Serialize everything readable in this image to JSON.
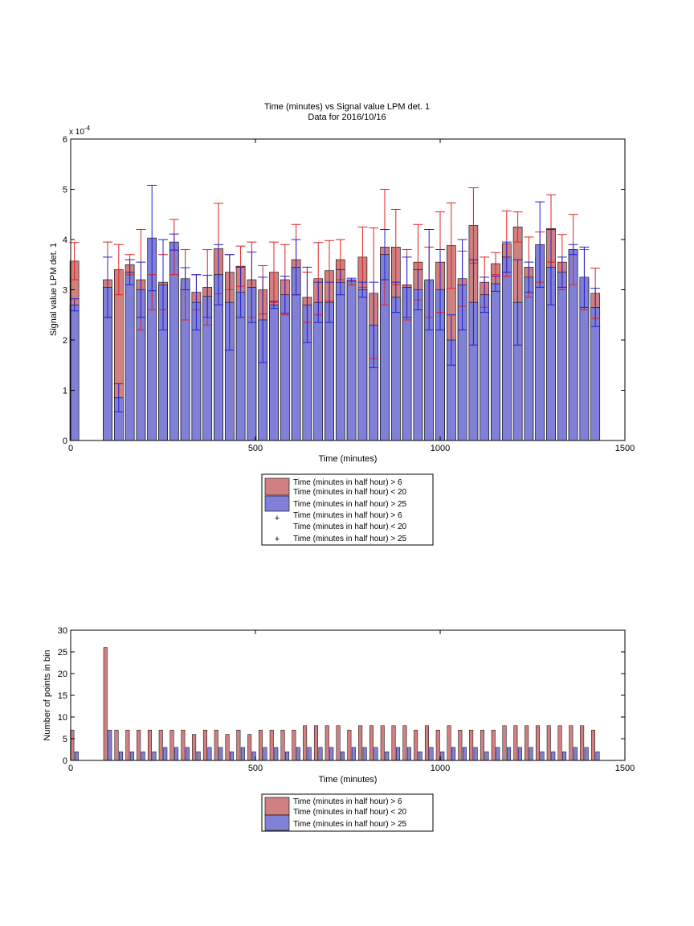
{
  "chart_data": [
    {
      "type": "bar",
      "title": [
        "Time (minutes) vs Signal value LPM det. 1",
        "Data for 2016/10/16"
      ],
      "xlabel": "Time (minutes)",
      "ylabel": "Signal value LPM det. 1",
      "xlim": [
        0,
        1500
      ],
      "ylim": [
        0,
        6
      ],
      "xticks": [
        0,
        500,
        1000,
        1500
      ],
      "yticks": [
        0,
        1,
        2,
        3,
        4,
        5,
        6
      ],
      "y_multiplier_label": "x 10",
      "y_multiplier_exponent": "-4",
      "grid": false,
      "legend_position": "below",
      "legend": [
        "Time (minutes in half hour) > 6\nTime (minutes in half hour) < 20",
        "Time (minutes in half hour) > 25",
        "Time (minutes in half hour) > 6\nTime (minutes in half hour) < 20",
        "Time (minutes in half hour) > 25"
      ],
      "colors": {
        "series1": "#d08080",
        "series2": "#8080d8",
        "err1": "#e02020",
        "err2": "#2020d0"
      },
      "x": [
        10,
        40,
        70,
        100,
        130,
        160,
        190,
        220,
        250,
        280,
        310,
        340,
        370,
        400,
        430,
        460,
        490,
        520,
        550,
        580,
        610,
        640,
        670,
        700,
        730,
        760,
        790,
        820,
        850,
        880,
        910,
        940,
        970,
        1000,
        1030,
        1060,
        1090,
        1120,
        1150,
        1180,
        1210,
        1240,
        1270,
        1300,
        1330,
        1360,
        1390,
        1420
      ],
      "series": [
        {
          "name": "Time (minutes in half hour) > 6 Time (minutes in half hour) < 20",
          "values": [
            3.57,
            null,
            null,
            3.2,
            3.4,
            3.5,
            3.2,
            2.95,
            3.15,
            3.85,
            3.1,
            2.95,
            3.05,
            3.82,
            3.35,
            3.47,
            3.2,
            3.0,
            3.35,
            3.2,
            3.6,
            2.85,
            3.22,
            3.38,
            3.6,
            3.15,
            3.65,
            2.93,
            3.85,
            3.85,
            3.1,
            3.55,
            3.15,
            3.55,
            3.88,
            3.22,
            4.28,
            3.15,
            3.52,
            3.92,
            4.25,
            3.45,
            3.65,
            4.22,
            3.55,
            3.8,
            3.2,
            2.93
          ],
          "err": [
            0.37,
            null,
            null,
            0.75,
            0.5,
            0.2,
            1.0,
            0.35,
            0.55,
            0.55,
            0.7,
            0.35,
            0.75,
            0.9,
            0.35,
            0.4,
            0.75,
            0.48,
            0.6,
            0.7,
            0.7,
            0.5,
            0.72,
            0.6,
            0.4,
            0.05,
            0.6,
            1.3,
            1.15,
            0.75,
            0.7,
            0.75,
            0.7,
            1.0,
            0.85,
            0.55,
            0.75,
            0.5,
            0.22,
            0.65,
            0.3,
            0.6,
            0.5,
            0.67,
            0.55,
            0.7,
            0.6,
            0.5
          ]
        },
        {
          "name": "Time (minutes in half hour) > 25",
          "values": [
            2.7,
            0,
            0,
            3.05,
            0.85,
            3.35,
            3.0,
            4.03,
            3.1,
            3.95,
            3.22,
            2.75,
            2.87,
            3.3,
            2.75,
            2.95,
            3.05,
            2.4,
            2.7,
            2.9,
            3.45,
            2.7,
            2.75,
            2.75,
            3.15,
            3.2,
            3.0,
            2.3,
            3.7,
            2.85,
            3.05,
            3.0,
            3.2,
            3.0,
            2.0,
            3.1,
            2.75,
            2.9,
            3.12,
            3.65,
            2.75,
            3.25,
            3.9,
            3.45,
            3.35,
            3.8,
            3.25,
            2.65
          ],
          "err": [
            0.12,
            0,
            0,
            0.6,
            0.28,
            0.25,
            0.55,
            1.05,
            0.9,
            0.16,
            0.22,
            0.55,
            0.42,
            0.6,
            0.95,
            0.5,
            0.7,
            0.85,
            0.07,
            0.37,
            0.55,
            0.75,
            0.4,
            0.4,
            0.25,
            0.03,
            0.15,
            0.85,
            0.5,
            0.3,
            0.6,
            0.4,
            1.0,
            0.8,
            0.5,
            0.9,
            0.85,
            0.35,
            0.15,
            0.3,
            0.85,
            0.3,
            0.85,
            0.75,
            0.3,
            0.1,
            0.6,
            0.38
          ]
        }
      ]
    },
    {
      "type": "bar",
      "xlabel": "Time (minutes)",
      "ylabel": "Number of points in bin",
      "xlim": [
        0,
        1500
      ],
      "ylim": [
        0,
        30
      ],
      "xticks": [
        0,
        500,
        1000,
        1500
      ],
      "yticks": [
        0,
        5,
        10,
        15,
        20,
        25,
        30
      ],
      "grid": false,
      "legend_position": "below",
      "legend": [
        "Time (minutes in half hour) > 6\nTime (minutes in half hour) < 20",
        "Time (minutes in half hour) > 25"
      ],
      "colors": {
        "series1": "#d08080",
        "series2": "#8080d8"
      },
      "x": [
        10,
        40,
        70,
        100,
        130,
        160,
        190,
        220,
        250,
        280,
        310,
        340,
        370,
        400,
        430,
        460,
        490,
        520,
        550,
        580,
        610,
        640,
        670,
        700,
        730,
        760,
        790,
        820,
        850,
        880,
        910,
        940,
        970,
        1000,
        1030,
        1060,
        1090,
        1120,
        1150,
        1180,
        1210,
        1240,
        1270,
        1300,
        1330,
        1360,
        1390,
        1420
      ],
      "series": [
        {
          "name": "Time (minutes in half hour) > 6 Time (minutes in half hour) < 20",
          "values": [
            7,
            0,
            0,
            26,
            7,
            7,
            7,
            7,
            7,
            7,
            7,
            6,
            7,
            7,
            6,
            7,
            6,
            7,
            7,
            7,
            7,
            8,
            8,
            8,
            8,
            7,
            8,
            8,
            8,
            8,
            8,
            7,
            8,
            7,
            8,
            7,
            7,
            7,
            7,
            8,
            8,
            8,
            8,
            8,
            8,
            8,
            8,
            7
          ]
        },
        {
          "name": "Time (minutes in half hour) > 25",
          "values": [
            2,
            0,
            0,
            7,
            2,
            2,
            2,
            2,
            3,
            3,
            3,
            2,
            3,
            3,
            2,
            3,
            2,
            3,
            3,
            2,
            3,
            3,
            3,
            3,
            2,
            3,
            3,
            3,
            2,
            3,
            3,
            2,
            3,
            2,
            3,
            3,
            3,
            2,
            3,
            3,
            3,
            3,
            2,
            2,
            2,
            3,
            3,
            2
          ]
        }
      ]
    }
  ]
}
